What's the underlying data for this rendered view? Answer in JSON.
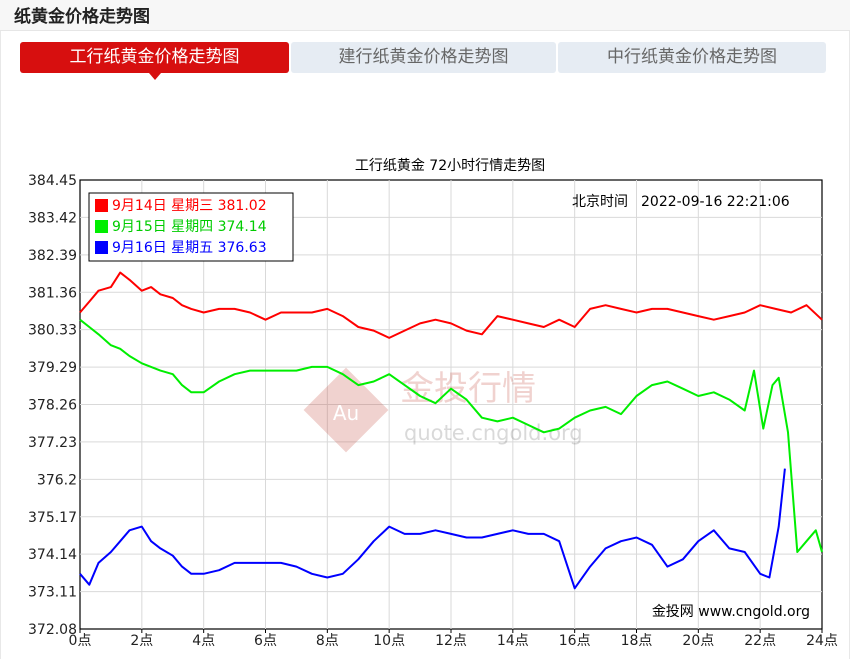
{
  "page": {
    "title": "纸黄金价格走势图"
  },
  "tabs": [
    {
      "label": "工行纸黄金价格走势图",
      "active": true
    },
    {
      "label": "建行纸黄金价格走势图",
      "active": false
    },
    {
      "label": "中行纸黄金价格走势图",
      "active": false
    }
  ],
  "watermark": {
    "logo_text": "Au",
    "brand": "金投行情",
    "url": "quote.cngold.org"
  },
  "chart_data": {
    "type": "line",
    "title": "工行纸黄金 72小时行情走势图",
    "timestamp_label": "北京时间",
    "timestamp": "2022-09-16 22:21:06",
    "footer": "金投网 www.cngold.org",
    "ylim": [
      372.08,
      384.45
    ],
    "y_ticks": [
      "384.45",
      "383.42",
      "382.39",
      "381.36",
      "380.33",
      "379.29",
      "378.26",
      "377.23",
      "376.2",
      "375.17",
      "374.14",
      "373.11",
      "372.08"
    ],
    "x_ticks": [
      "0点",
      "2点",
      "4点",
      "6点",
      "8点",
      "10点",
      "12点",
      "14点",
      "16点",
      "18点",
      "20点",
      "22点",
      "24点"
    ],
    "legend_position": "top-left",
    "series": [
      {
        "name": "9月14日 星期三 381.02",
        "color": "#ff0000",
        "x": [
          0,
          0.3,
          0.6,
          1.0,
          1.3,
          1.6,
          2.0,
          2.3,
          2.6,
          3.0,
          3.3,
          3.6,
          4.0,
          4.5,
          5.0,
          5.5,
          6.0,
          6.5,
          7.0,
          7.5,
          8.0,
          8.5,
          9.0,
          9.5,
          10.0,
          10.5,
          11.0,
          11.5,
          12.0,
          12.5,
          13.0,
          13.5,
          14.0,
          14.5,
          15.0,
          15.5,
          16.0,
          16.5,
          17.0,
          17.5,
          18.0,
          18.5,
          19.0,
          19.5,
          20.0,
          20.5,
          21.0,
          21.5,
          22.0,
          22.5,
          23.0,
          23.5,
          24.0
        ],
        "y": [
          380.8,
          381.1,
          381.4,
          381.5,
          381.9,
          381.7,
          381.4,
          381.5,
          381.3,
          381.2,
          381.0,
          380.9,
          380.8,
          380.9,
          380.9,
          380.8,
          380.6,
          380.8,
          380.8,
          380.8,
          380.9,
          380.7,
          380.4,
          380.3,
          380.1,
          380.3,
          380.5,
          380.6,
          380.5,
          380.3,
          380.2,
          380.7,
          380.6,
          380.5,
          380.4,
          380.6,
          380.4,
          380.9,
          381.0,
          380.9,
          380.8,
          380.9,
          380.9,
          380.8,
          380.7,
          380.6,
          380.7,
          380.8,
          381.0,
          380.9,
          380.8,
          381.0,
          380.6
        ]
      },
      {
        "name": "9月15日 星期四 374.14",
        "color": "#00ee00",
        "x": [
          0,
          0.3,
          0.6,
          1.0,
          1.3,
          1.6,
          2.0,
          2.3,
          2.6,
          3.0,
          3.3,
          3.6,
          4.0,
          4.5,
          5.0,
          5.5,
          6.0,
          6.5,
          7.0,
          7.5,
          8.0,
          8.5,
          9.0,
          9.5,
          10.0,
          10.5,
          11.0,
          11.5,
          12.0,
          12.5,
          13.0,
          13.5,
          14.0,
          14.5,
          15.0,
          15.5,
          16.0,
          16.5,
          17.0,
          17.5,
          18.0,
          18.5,
          19.0,
          19.5,
          20.0,
          20.5,
          21.0,
          21.5,
          21.8,
          22.1,
          22.4,
          22.6,
          22.9,
          23.2,
          23.5,
          23.8,
          24.0
        ],
        "y": [
          380.6,
          380.4,
          380.2,
          379.9,
          379.8,
          379.6,
          379.4,
          379.3,
          379.2,
          379.1,
          378.8,
          378.6,
          378.6,
          378.9,
          379.1,
          379.2,
          379.2,
          379.2,
          379.2,
          379.3,
          379.3,
          379.1,
          378.8,
          378.9,
          379.1,
          378.8,
          378.5,
          378.3,
          378.7,
          378.4,
          377.9,
          377.8,
          377.9,
          377.7,
          377.5,
          377.6,
          377.9,
          378.1,
          378.2,
          378.0,
          378.5,
          378.8,
          378.9,
          378.7,
          378.5,
          378.6,
          378.4,
          378.1,
          379.2,
          377.6,
          378.8,
          379.0,
          377.5,
          374.2,
          374.5,
          374.8,
          374.2
        ]
      },
      {
        "name": "9月16日 星期五 376.63",
        "color": "#0000ff",
        "x": [
          0,
          0.3,
          0.6,
          1.0,
          1.3,
          1.6,
          2.0,
          2.3,
          2.6,
          3.0,
          3.3,
          3.6,
          4.0,
          4.5,
          5.0,
          5.5,
          6.0,
          6.5,
          7.0,
          7.5,
          8.0,
          8.5,
          9.0,
          9.5,
          10.0,
          10.5,
          11.0,
          11.5,
          12.0,
          12.5,
          13.0,
          13.5,
          14.0,
          14.5,
          15.0,
          15.5,
          16.0,
          16.5,
          17.0,
          17.5,
          18.0,
          18.5,
          19.0,
          19.5,
          20.0,
          20.5,
          21.0,
          21.5,
          22.0,
          22.3,
          22.6,
          22.8
        ],
        "y": [
          373.6,
          373.3,
          373.9,
          374.2,
          374.5,
          374.8,
          374.9,
          374.5,
          374.3,
          374.1,
          373.8,
          373.6,
          373.6,
          373.7,
          373.9,
          373.9,
          373.9,
          373.9,
          373.8,
          373.6,
          373.5,
          373.6,
          374.0,
          374.5,
          374.9,
          374.7,
          374.7,
          374.8,
          374.7,
          374.6,
          374.6,
          374.7,
          374.8,
          374.7,
          374.7,
          374.5,
          373.2,
          373.8,
          374.3,
          374.5,
          374.6,
          374.4,
          373.8,
          374.0,
          374.5,
          374.8,
          374.3,
          374.2,
          373.6,
          373.5,
          374.9,
          376.5
        ]
      }
    ]
  }
}
